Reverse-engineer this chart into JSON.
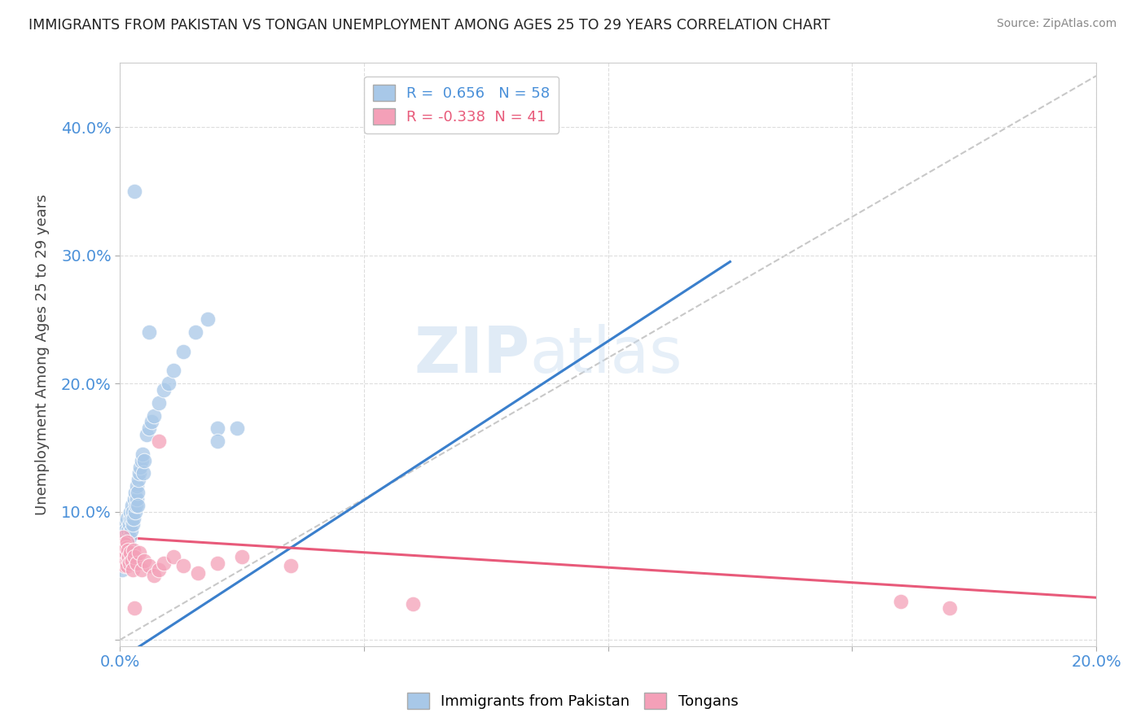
{
  "title": "IMMIGRANTS FROM PAKISTAN VS TONGAN UNEMPLOYMENT AMONG AGES 25 TO 29 YEARS CORRELATION CHART",
  "source": "Source: ZipAtlas.com",
  "ylabel": "Unemployment Among Ages 25 to 29 years",
  "legend_label1": "Immigrants from Pakistan",
  "legend_label2": "Tongans",
  "R1": 0.656,
  "N1": 58,
  "R2": -0.338,
  "N2": 41,
  "xlim": [
    0.0,
    0.2
  ],
  "ylim": [
    -0.005,
    0.45
  ],
  "xticks": [
    0.0,
    0.05,
    0.1,
    0.15,
    0.2
  ],
  "yticks": [
    0.0,
    0.1,
    0.2,
    0.3,
    0.4
  ],
  "xticklabels": [
    "0.0%",
    "",
    "",
    "",
    "20.0%"
  ],
  "yticklabels": [
    "",
    "10.0%",
    "20.0%",
    "30.0%",
    "40.0%"
  ],
  "blue_color": "#A8C8E8",
  "pink_color": "#F4A0B8",
  "blue_line_color": "#3A7FCC",
  "pink_line_color": "#E85A7A",
  "diag_color": "#BBBBBB",
  "watermark_zip": "ZIP",
  "watermark_atlas": "atlas",
  "background": "#FFFFFF",
  "blue_scatter_x": [
    0.0002,
    0.0004,
    0.0006,
    0.0007,
    0.0008,
    0.0008,
    0.001,
    0.001,
    0.0011,
    0.0012,
    0.0013,
    0.0014,
    0.0015,
    0.0015,
    0.0016,
    0.0017,
    0.0018,
    0.0019,
    0.002,
    0.0021,
    0.0022,
    0.0023,
    0.0024,
    0.0025,
    0.0026,
    0.0027,
    0.0028,
    0.003,
    0.0031,
    0.0032,
    0.0033,
    0.0034,
    0.0035,
    0.0036,
    0.0037,
    0.0038,
    0.004,
    0.0042,
    0.0044,
    0.0046,
    0.0048,
    0.005,
    0.0055,
    0.006,
    0.0065,
    0.007,
    0.008,
    0.009,
    0.01,
    0.011,
    0.013,
    0.0155,
    0.018,
    0.02,
    0.024,
    0.02,
    0.006,
    0.003
  ],
  "blue_scatter_y": [
    0.07,
    0.055,
    0.065,
    0.08,
    0.06,
    0.075,
    0.09,
    0.065,
    0.07,
    0.085,
    0.075,
    0.065,
    0.08,
    0.095,
    0.07,
    0.085,
    0.075,
    0.09,
    0.08,
    0.095,
    0.1,
    0.085,
    0.095,
    0.105,
    0.09,
    0.1,
    0.095,
    0.11,
    0.1,
    0.115,
    0.105,
    0.11,
    0.12,
    0.115,
    0.105,
    0.125,
    0.13,
    0.135,
    0.14,
    0.145,
    0.13,
    0.14,
    0.16,
    0.165,
    0.17,
    0.175,
    0.185,
    0.195,
    0.2,
    0.21,
    0.225,
    0.24,
    0.25,
    0.165,
    0.165,
    0.155,
    0.24,
    0.35
  ],
  "pink_scatter_x": [
    0.0002,
    0.0004,
    0.0005,
    0.0006,
    0.0007,
    0.0008,
    0.0009,
    0.001,
    0.0011,
    0.0012,
    0.0013,
    0.0014,
    0.0015,
    0.0016,
    0.0017,
    0.0018,
    0.002,
    0.0022,
    0.0024,
    0.0026,
    0.0028,
    0.003,
    0.0035,
    0.004,
    0.0045,
    0.005,
    0.006,
    0.007,
    0.008,
    0.009,
    0.011,
    0.013,
    0.016,
    0.02,
    0.025,
    0.035,
    0.06,
    0.008,
    0.16,
    0.17,
    0.003
  ],
  "pink_scatter_y": [
    0.068,
    0.072,
    0.06,
    0.08,
    0.065,
    0.07,
    0.058,
    0.075,
    0.062,
    0.068,
    0.072,
    0.058,
    0.076,
    0.063,
    0.07,
    0.065,
    0.06,
    0.068,
    0.062,
    0.055,
    0.07,
    0.065,
    0.06,
    0.068,
    0.055,
    0.062,
    0.058,
    0.05,
    0.055,
    0.06,
    0.065,
    0.058,
    0.052,
    0.06,
    0.065,
    0.058,
    0.028,
    0.155,
    0.03,
    0.025,
    0.025
  ],
  "blue_line_x": [
    0.0,
    0.125
  ],
  "blue_line_y": [
    -0.015,
    0.295
  ],
  "pink_line_x": [
    0.0,
    0.2
  ],
  "pink_line_y": [
    0.08,
    0.033
  ]
}
